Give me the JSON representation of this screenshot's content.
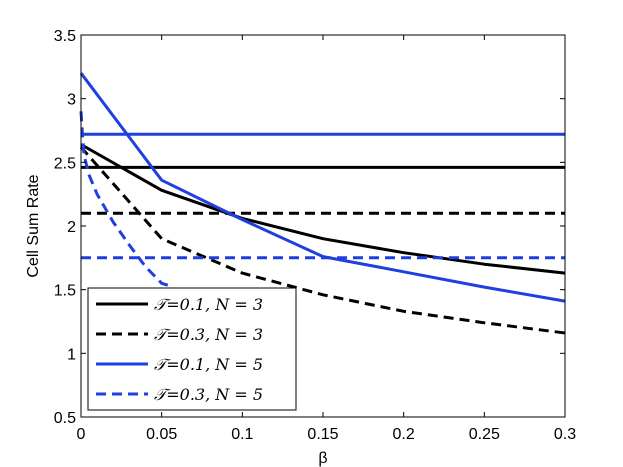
{
  "chart_data": {
    "type": "line",
    "xlabel": "β",
    "ylabel": "Cell Sum Rate",
    "xlim": [
      0,
      0.3
    ],
    "ylim": [
      0.5,
      3.5
    ],
    "xticks": [
      0,
      0.05,
      0.1,
      0.15,
      0.2,
      0.25,
      0.3
    ],
    "xtick_labels": [
      "0",
      "0.05",
      "0.1",
      "0.15",
      "0.2",
      "0.25",
      "0.3"
    ],
    "yticks": [
      0.5,
      1,
      1.5,
      2,
      2.5,
      3,
      3.5
    ],
    "ytick_labels": [
      "0.5",
      "1",
      "1.5",
      "2",
      "2.5",
      "3",
      "3.5"
    ],
    "grid": false,
    "legend_position": "bottom-left",
    "colors": {
      "black": "#000000",
      "blue": "#1f3fe0"
    },
    "series": [
      {
        "name": "𝒯=0.1, N = 3",
        "color": "#000000",
        "dash": false,
        "curves": [
          {
            "x": [
              0,
              0.3
            ],
            "y": [
              2.46,
              2.46
            ]
          },
          {
            "x": [
              0,
              0.05,
              0.1,
              0.15,
              0.2,
              0.25,
              0.3
            ],
            "y": [
              2.64,
              2.28,
              2.06,
              1.9,
              1.79,
              1.7,
              1.63
            ]
          }
        ]
      },
      {
        "name": "𝒯=0.3, N = 3",
        "color": "#000000",
        "dash": true,
        "curves": [
          {
            "x": [
              0,
              0.3
            ],
            "y": [
              2.1,
              2.1
            ]
          },
          {
            "x": [
              0,
              0.05,
              0.1,
              0.15,
              0.2,
              0.25,
              0.3
            ],
            "y": [
              2.62,
              1.9,
              1.63,
              1.46,
              1.33,
              1.24,
              1.16
            ]
          }
        ]
      },
      {
        "name": "𝒯=0.1, N = 5",
        "color": "#1f3fe0",
        "dash": false,
        "curves": [
          {
            "x": [
              0,
              0.3
            ],
            "y": [
              2.72,
              2.72
            ]
          },
          {
            "x": [
              0,
              0.05,
              0.1,
              0.15,
              0.2,
              0.25,
              0.3
            ],
            "y": [
              3.2,
              2.36,
              2.05,
              1.76,
              1.64,
              1.52,
              1.41
            ]
          }
        ]
      },
      {
        "name": "𝒯=0.3, N = 5",
        "color": "#1f3fe0",
        "dash": true,
        "curves": [
          {
            "x": [
              0,
              0.3
            ],
            "y": [
              1.75,
              1.75
            ]
          },
          {
            "x": [
              0,
              0.001,
              0.002,
              0.005,
              0.01,
              0.02,
              0.03,
              0.04,
              0.05,
              0.055
            ],
            "y": [
              2.9,
              2.7,
              2.55,
              2.4,
              2.25,
              2.03,
              1.85,
              1.68,
              1.55,
              1.53
            ]
          }
        ]
      }
    ]
  }
}
